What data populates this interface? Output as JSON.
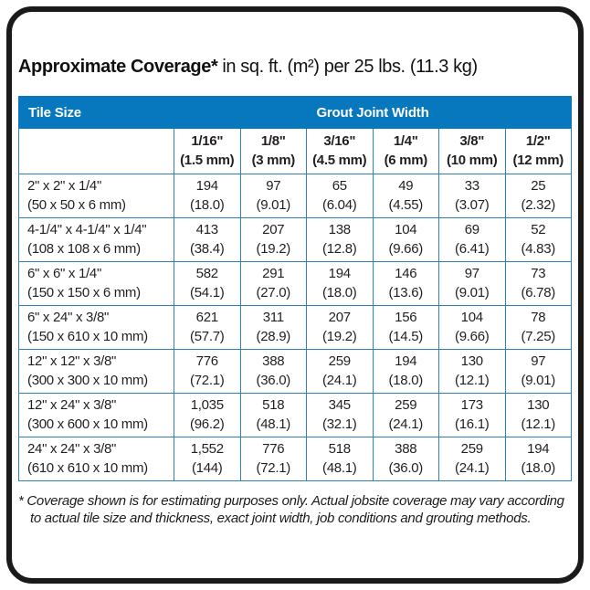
{
  "title": {
    "main": "Approximate Coverage*",
    "units": "in sq. ft. (m²) per 25 lbs. (11.3 kg)"
  },
  "table": {
    "tile_size_label": "Tile Size",
    "group_label": "Grout Joint Width",
    "columns": [
      {
        "fraction": "1/16\"",
        "metric": "(1.5 mm)"
      },
      {
        "fraction": "1/8\"",
        "metric": "(3 mm)"
      },
      {
        "fraction": "3/16\"",
        "metric": "(4.5 mm)"
      },
      {
        "fraction": "1/4\"",
        "metric": "(6 mm)"
      },
      {
        "fraction": "3/8\"",
        "metric": "(10 mm)"
      },
      {
        "fraction": "1/2\"",
        "metric": "(12 mm)"
      }
    ],
    "rows": [
      {
        "size": "2\" x 2\" x 1/4\"",
        "size_metric": "(50 x 50 x 6 mm)",
        "cells": [
          {
            "sqft": "194",
            "m2": "(18.0)"
          },
          {
            "sqft": "97",
            "m2": "(9.01)"
          },
          {
            "sqft": "65",
            "m2": "(6.04)"
          },
          {
            "sqft": "49",
            "m2": "(4.55)"
          },
          {
            "sqft": "33",
            "m2": "(3.07)"
          },
          {
            "sqft": "25",
            "m2": "(2.32)"
          }
        ]
      },
      {
        "size": "4-1/4\" x 4-1/4\" x 1/4\"",
        "size_metric": "(108 x 108 x 6 mm)",
        "cells": [
          {
            "sqft": "413",
            "m2": "(38.4)"
          },
          {
            "sqft": "207",
            "m2": "(19.2)"
          },
          {
            "sqft": "138",
            "m2": "(12.8)"
          },
          {
            "sqft": "104",
            "m2": "(9.66)"
          },
          {
            "sqft": "69",
            "m2": "(6.41)"
          },
          {
            "sqft": "52",
            "m2": "(4.83)"
          }
        ]
      },
      {
        "size": "6\" x 6\" x 1/4\"",
        "size_metric": "(150 x 150 x 6 mm)",
        "cells": [
          {
            "sqft": "582",
            "m2": "(54.1)"
          },
          {
            "sqft": "291",
            "m2": "(27.0)"
          },
          {
            "sqft": "194",
            "m2": "(18.0)"
          },
          {
            "sqft": "146",
            "m2": "(13.6)"
          },
          {
            "sqft": "97",
            "m2": "(9.01)"
          },
          {
            "sqft": "73",
            "m2": "(6.78)"
          }
        ]
      },
      {
        "size": "6\" x 24\" x 3/8\"",
        "size_metric": "(150 x 610 x 10 mm)",
        "cells": [
          {
            "sqft": "621",
            "m2": "(57.7)"
          },
          {
            "sqft": "311",
            "m2": "(28.9)"
          },
          {
            "sqft": "207",
            "m2": "(19.2)"
          },
          {
            "sqft": "156",
            "m2": "(14.5)"
          },
          {
            "sqft": "104",
            "m2": "(9.66)"
          },
          {
            "sqft": "78",
            "m2": "(7.25)"
          }
        ]
      },
      {
        "size": "12\" x 12\" x 3/8\"",
        "size_metric": "(300 x 300 x 10 mm)",
        "cells": [
          {
            "sqft": "776",
            "m2": "(72.1)"
          },
          {
            "sqft": "388",
            "m2": "(36.0)"
          },
          {
            "sqft": "259",
            "m2": "(24.1)"
          },
          {
            "sqft": "194",
            "m2": "(18.0)"
          },
          {
            "sqft": "130",
            "m2": "(12.1)"
          },
          {
            "sqft": "97",
            "m2": "(9.01)"
          }
        ]
      },
      {
        "size": "12\" x 24\" x 3/8\"",
        "size_metric": "(300 x 600 x 10 mm)",
        "cells": [
          {
            "sqft": "1,035",
            "m2": "(96.2)"
          },
          {
            "sqft": "518",
            "m2": "(48.1)"
          },
          {
            "sqft": "345",
            "m2": "(32.1)"
          },
          {
            "sqft": "259",
            "m2": "(24.1)"
          },
          {
            "sqft": "173",
            "m2": "(16.1)"
          },
          {
            "sqft": "130",
            "m2": "(12.1)"
          }
        ]
      },
      {
        "size": "24\" x 24\" x 3/8\"",
        "size_metric": "(610 x 610 x 10 mm)",
        "cells": [
          {
            "sqft": "1,552",
            "m2": "(144)"
          },
          {
            "sqft": "776",
            "m2": "(72.1)"
          },
          {
            "sqft": "518",
            "m2": "(48.1)"
          },
          {
            "sqft": "388",
            "m2": "(36.0)"
          },
          {
            "sqft": "259",
            "m2": "(24.1)"
          },
          {
            "sqft": "194",
            "m2": "(18.0)"
          }
        ]
      }
    ]
  },
  "footnote": "* Coverage shown is for estimating purposes only. Actual jobsite coverage may vary according to actual tile size and thickness, exact joint width, job conditions and grouting methods.",
  "colors": {
    "header_blue": "#0778BE",
    "grid_blue": "#2F80C3",
    "text_dark": "#231F20",
    "border_black": "#1A1A1A"
  }
}
